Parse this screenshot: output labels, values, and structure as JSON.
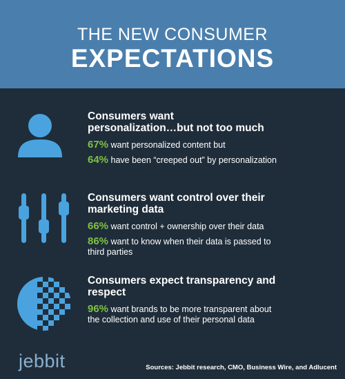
{
  "header": {
    "line1": "THE NEW CONSUMER",
    "line2": "EXPECTATIONS"
  },
  "colors": {
    "header_bg": "#4a7fad",
    "body_bg": "#1f2d3a",
    "accent_green": "#7fc241",
    "icon_blue": "#4aa3df"
  },
  "sections": [
    {
      "icon": "person-icon",
      "heading_line1": "Consumers want",
      "heading_line2": "personalization…but not too much",
      "stats": [
        {
          "pct": "67%",
          "text": " want personalized content but"
        },
        {
          "pct": "64%",
          "text": " have been “creeped out” by personalization"
        }
      ]
    },
    {
      "icon": "sliders-icon",
      "heading_line1": "Consumers want control over their",
      "heading_line2": "marketing data",
      "stats": [
        {
          "pct": "66%",
          "text": " want control + ownership over their data"
        },
        {
          "pct": "86%",
          "text": " want to know when their data is passed to",
          "text2": "third parties"
        }
      ]
    },
    {
      "icon": "transparency-circle-icon",
      "heading_line1": "Consumers expect transparency and",
      "heading_line2": "respect",
      "stats": [
        {
          "pct": "96%",
          "text": " want brands to be more transparent about",
          "text2": "the collection and use of their personal data"
        }
      ]
    }
  ],
  "footer": {
    "logo": "jebbit",
    "sources": "Sources: Jebbit research, CMO, Business Wire, and Adlucent"
  }
}
